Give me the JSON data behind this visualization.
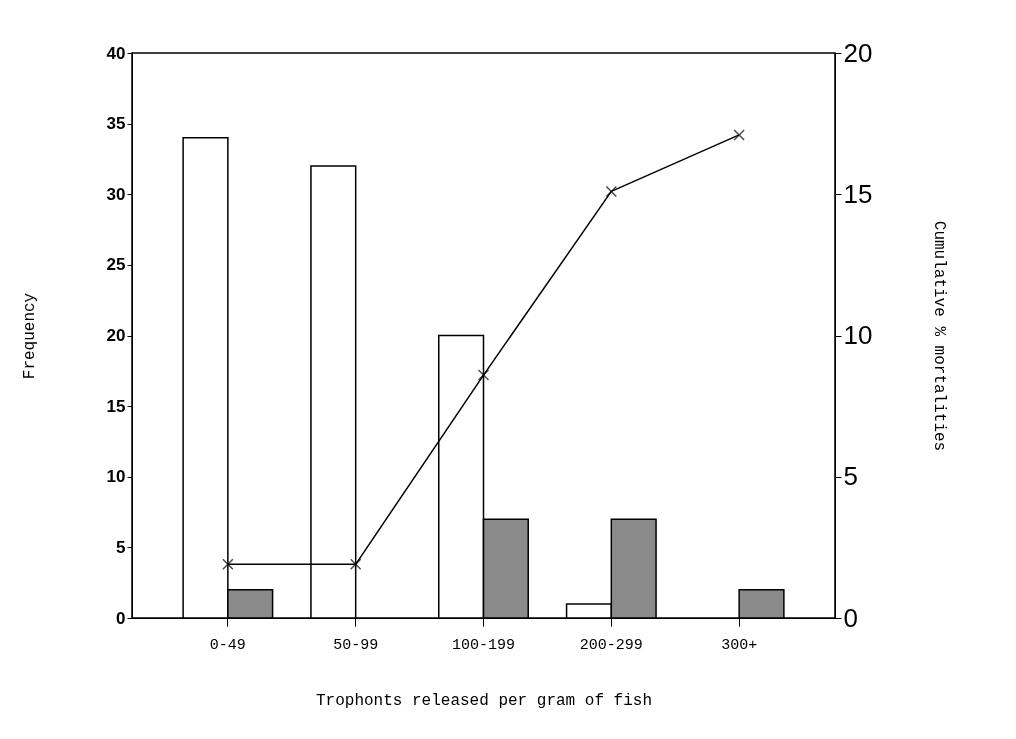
{
  "chart_data": {
    "type": "bar",
    "xlabel": "Trophonts released per gram of fish",
    "ylabel": "Frequency",
    "y2label": "Cumulative % mortalities",
    "categories": [
      "0-49",
      "50-99",
      "100-199",
      "200-299",
      "300+"
    ],
    "series": [
      {
        "color": "#ffffff",
        "values": [
          34,
          32,
          20,
          1,
          null
        ]
      },
      {
        "color": "#8a8a8a",
        "values": [
          2,
          null,
          7,
          7,
          2
        ]
      },
      {
        "type": "line",
        "axis": "y2",
        "color": "#000000",
        "marker": "cross",
        "values": [
          1.9,
          1.9,
          8.6,
          15.1,
          17.1
        ]
      }
    ],
    "ylim": [
      0,
      40
    ],
    "yticks": [
      0,
      5,
      10,
      15,
      20,
      25,
      30,
      35,
      40
    ],
    "y2lim": [
      0,
      20
    ],
    "y2ticks": [
      0,
      5,
      10,
      15,
      20
    ],
    "grid": false,
    "legend": false
  }
}
